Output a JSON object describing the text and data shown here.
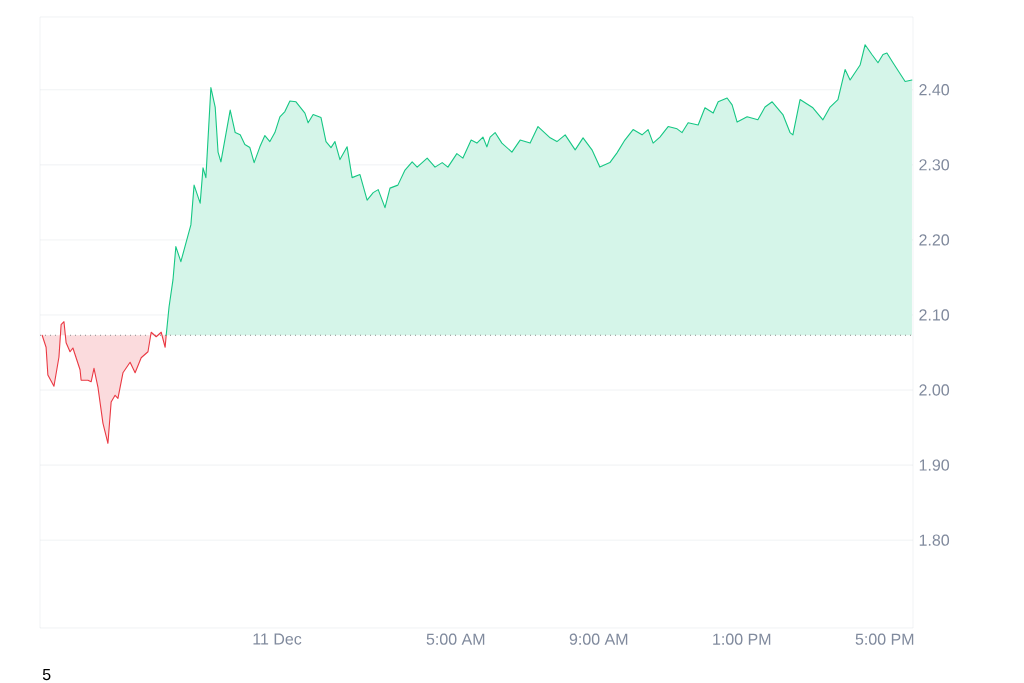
{
  "chart_data": {
    "type": "area",
    "series": [
      {
        "color": "#ea3943",
        "x": [
          -6.57,
          -6.46,
          -6.41,
          -6.24,
          -6.1,
          -6.04,
          -5.96,
          -5.9,
          -5.79,
          -5.71,
          -5.51,
          -5.48,
          -5.29,
          -5.2,
          -5.12,
          -5.01,
          -4.87,
          -4.73,
          -4.64,
          -4.53,
          -4.45,
          -4.31,
          -4.11,
          -3.97,
          -3.8,
          -3.61,
          -3.52,
          -3.38,
          -3.24,
          -3.13,
          -3.1
        ],
        "values": [
          2.073,
          2.057,
          2.02,
          2.005,
          2.044,
          2.087,
          2.091,
          2.063,
          2.051,
          2.056,
          2.027,
          2.013,
          2.013,
          2.011,
          2.029,
          2.004,
          1.956,
          1.929,
          1.984,
          1.993,
          1.989,
          2.023,
          2.037,
          2.023,
          2.043,
          2.051,
          2.077,
          2.071,
          2.077,
          2.057,
          2.073
        ]
      },
      {
        "color": "#16c784",
        "x": [
          -3.1,
          -3.02,
          -2.91,
          -2.83,
          -2.69,
          -2.41,
          -2.32,
          -2.15,
          -2.07,
          -1.99,
          -1.85,
          -1.73,
          -1.65,
          -1.57,
          -1.31,
          -1.17,
          -1.03,
          -0.9,
          -0.76,
          -0.64,
          -0.48,
          -0.34,
          -0.2,
          -0.06,
          0.08,
          0.22,
          0.36,
          0.53,
          0.78,
          0.87,
          1.01,
          1.23,
          1.37,
          1.51,
          1.62,
          1.76,
          1.96,
          2.1,
          2.32,
          2.52,
          2.69,
          2.83,
          3.02,
          3.16,
          3.38,
          3.58,
          3.78,
          3.92,
          4.2,
          4.42,
          4.62,
          4.78,
          5.03,
          5.2,
          5.43,
          5.59,
          5.76,
          5.87,
          5.96,
          6.1,
          6.29,
          6.57,
          6.8,
          7.08,
          7.3,
          7.64,
          7.83,
          8.06,
          8.34,
          8.56,
          8.81,
          9.03,
          9.31,
          9.51,
          9.73,
          9.96,
          10.21,
          10.38,
          10.52,
          10.71,
          10.94,
          11.19,
          11.33,
          11.5,
          11.78,
          11.97,
          12.2,
          12.34,
          12.59,
          12.73,
          12.87,
          13.15,
          13.45,
          13.65,
          13.85,
          14.15,
          14.35,
          14.43,
          14.63,
          14.99,
          15.27,
          15.47,
          15.69,
          15.89,
          16.03,
          16.31,
          16.45,
          16.64,
          16.81,
          16.95,
          17.06,
          17.23,
          17.57,
          17.76
        ],
        "values": [
          2.073,
          2.111,
          2.147,
          2.191,
          2.171,
          2.22,
          2.273,
          2.249,
          2.296,
          2.283,
          2.403,
          2.377,
          2.317,
          2.304,
          2.373,
          2.343,
          2.34,
          2.327,
          2.323,
          2.303,
          2.324,
          2.339,
          2.331,
          2.343,
          2.364,
          2.371,
          2.385,
          2.384,
          2.369,
          2.356,
          2.367,
          2.363,
          2.331,
          2.323,
          2.331,
          2.307,
          2.324,
          2.283,
          2.287,
          2.253,
          2.263,
          2.267,
          2.243,
          2.269,
          2.273,
          2.293,
          2.304,
          2.297,
          2.309,
          2.297,
          2.303,
          2.297,
          2.315,
          2.309,
          2.333,
          2.329,
          2.337,
          2.324,
          2.337,
          2.343,
          2.329,
          2.317,
          2.333,
          2.329,
          2.351,
          2.336,
          2.331,
          2.34,
          2.32,
          2.336,
          2.32,
          2.297,
          2.303,
          2.316,
          2.333,
          2.347,
          2.34,
          2.347,
          2.329,
          2.337,
          2.351,
          2.348,
          2.343,
          2.356,
          2.353,
          2.376,
          2.369,
          2.384,
          2.389,
          2.38,
          2.357,
          2.364,
          2.36,
          2.377,
          2.384,
          2.367,
          2.343,
          2.34,
          2.387,
          2.376,
          2.36,
          2.377,
          2.387,
          2.427,
          2.413,
          2.433,
          2.46,
          2.447,
          2.436,
          2.447,
          2.449,
          2.436,
          2.411,
          2.413
        ]
      }
    ],
    "xlim": [
      -6.63,
      17.79
    ],
    "ylim": [
      1.683,
      2.497
    ],
    "xticks": [
      {
        "value": 0,
        "label": "11 Dec"
      },
      {
        "value": 5,
        "label": "5:00 AM"
      },
      {
        "value": 9,
        "label": "9:00 AM"
      },
      {
        "value": 13,
        "label": "1:00 PM"
      },
      {
        "value": 17,
        "label": "5:00 PM"
      }
    ],
    "yticks": [
      {
        "value": 1.8,
        "label": "1.80"
      },
      {
        "value": 1.9,
        "label": "1.90"
      },
      {
        "value": 2.0,
        "label": "2.00"
      },
      {
        "value": 2.1,
        "label": "2.10"
      },
      {
        "value": 2.2,
        "label": "2.20"
      },
      {
        "value": 2.3,
        "label": "2.30"
      },
      {
        "value": 2.4,
        "label": "2.40"
      }
    ],
    "grid": "y",
    "ref_lines": [
      {
        "axis": "y",
        "value": 2.073,
        "color": "#8a8a8a",
        "line_style": "dotted"
      }
    ],
    "annotations": [
      "5"
    ]
  }
}
